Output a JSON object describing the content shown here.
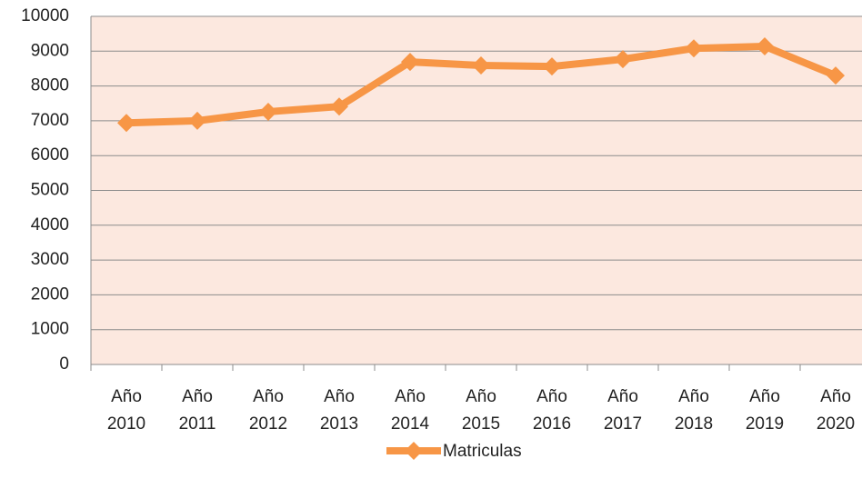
{
  "chart_data": {
    "type": "line",
    "categories": [
      "Año 2010",
      "Año 2011",
      "Año 2012",
      "Año 2013",
      "Año 2014",
      "Año 2015",
      "Año 2016",
      "Año 2017",
      "Año 2018",
      "Año 2019",
      "Año 2020"
    ],
    "series": [
      {
        "name": "Matriculas",
        "color": "#f79646",
        "values": [
          6940,
          7000,
          7260,
          7410,
          8690,
          8590,
          8560,
          8770,
          9080,
          9140,
          8300
        ]
      }
    ],
    "ylim": [
      0,
      10000
    ],
    "yticks": [
      0,
      1000,
      2000,
      3000,
      4000,
      5000,
      6000,
      7000,
      8000,
      9000,
      10000
    ],
    "grid": true,
    "legend": "bottom"
  }
}
